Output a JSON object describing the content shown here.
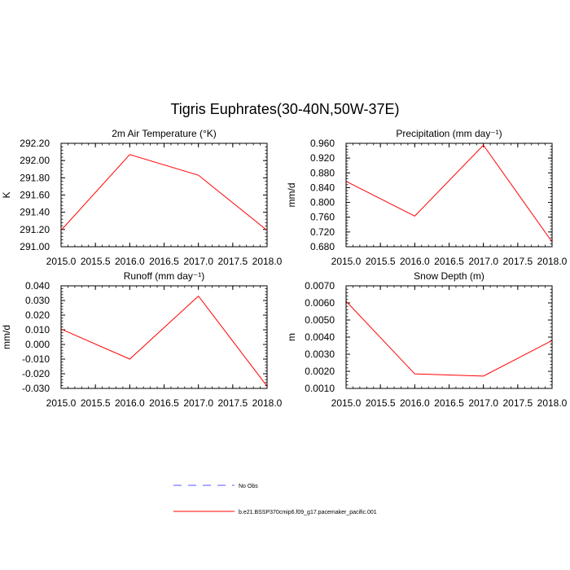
{
  "figure": {
    "title": "Tigris Euphrates(30-40N,50W-37E)"
  },
  "legend": {
    "items": [
      {
        "label": "No Obs",
        "color": "#5555ff",
        "style": "dashed"
      },
      {
        "label": "b.e21.BSSP370cmip6.f09_g17.pacemaker_pacific.001",
        "color": "#ff0000",
        "style": "solid"
      }
    ]
  },
  "chart_data": [
    {
      "type": "line",
      "title": "2m Air Temperature (°K)",
      "ylabel": "K",
      "x": [
        2015.0,
        2016.0,
        2017.0,
        2018.0
      ],
      "xlim": [
        2015.0,
        2018.0
      ],
      "xticks": [
        "2015.0",
        "2015.5",
        "2016.0",
        "2016.5",
        "2017.0",
        "2017.5",
        "2018.0"
      ],
      "ylim": [
        291.0,
        292.2
      ],
      "yticks": [
        "291.00",
        "291.20",
        "291.40",
        "291.60",
        "291.80",
        "292.00",
        "292.20"
      ],
      "series": [
        {
          "name": "b.e21.BSSP370cmip6.f09_g17.pacemaker_pacific.001",
          "color": "#ff0000",
          "values": [
            291.19,
            292.07,
            291.83,
            291.19
          ]
        }
      ]
    },
    {
      "type": "line",
      "title": "Precipitation (mm day⁻¹)",
      "ylabel": "mm/d",
      "x": [
        2015.0,
        2016.0,
        2017.0,
        2018.0
      ],
      "xlim": [
        2015.0,
        2018.0
      ],
      "xticks": [
        "2015.0",
        "2015.5",
        "2016.0",
        "2016.5",
        "2017.0",
        "2017.5",
        "2018.0"
      ],
      "ylim": [
        0.68,
        0.96
      ],
      "yticks": [
        "0.960",
        "0.920",
        "0.880",
        "0.840",
        "0.800",
        "0.760",
        "0.720",
        "0.680"
      ],
      "series": [
        {
          "name": "b.e21.BSSP370cmip6.f09_g17.pacemaker_pacific.001",
          "color": "#ff0000",
          "values": [
            0.857,
            0.763,
            0.955,
            0.693
          ]
        }
      ]
    },
    {
      "type": "line",
      "title": "Runoff (mm day⁻¹)",
      "ylabel": "mm/d",
      "x": [
        2015.0,
        2016.0,
        2017.0,
        2018.0
      ],
      "xlim": [
        2015.0,
        2018.0
      ],
      "xticks": [
        "2015.0",
        "2015.5",
        "2016.0",
        "2016.5",
        "2017.0",
        "2017.5",
        "2018.0"
      ],
      "ylim": [
        -0.03,
        0.04
      ],
      "yticks": [
        "0.040",
        "0.030",
        "0.020",
        "0.010",
        "0.000",
        "-0.010",
        "-0.020",
        "-0.030"
      ],
      "series": [
        {
          "name": "b.e21.BSSP370cmip6.f09_g17.pacemaker_pacific.001",
          "color": "#ff0000",
          "values": [
            0.0105,
            -0.01,
            0.033,
            -0.0285
          ]
        }
      ]
    },
    {
      "type": "line",
      "title": "Snow Depth (m)",
      "ylabel": "m",
      "x": [
        2015.0,
        2016.0,
        2017.0,
        2018.0
      ],
      "xlim": [
        2015.0,
        2018.0
      ],
      "xticks": [
        "2015.0",
        "2015.5",
        "2016.0",
        "2016.5",
        "2017.0",
        "2017.5",
        "2018.0"
      ],
      "ylim": [
        0.001,
        0.007
      ],
      "yticks": [
        "0.0070",
        "0.0060",
        "0.0050",
        "0.0040",
        "0.0030",
        "0.0020",
        "0.0010"
      ],
      "series": [
        {
          "name": "b.e21.BSSP370cmip6.f09_g17.pacemaker_pacific.001",
          "color": "#ff0000",
          "values": [
            0.0061,
            0.00185,
            0.00172,
            0.0038
          ]
        }
      ]
    }
  ]
}
